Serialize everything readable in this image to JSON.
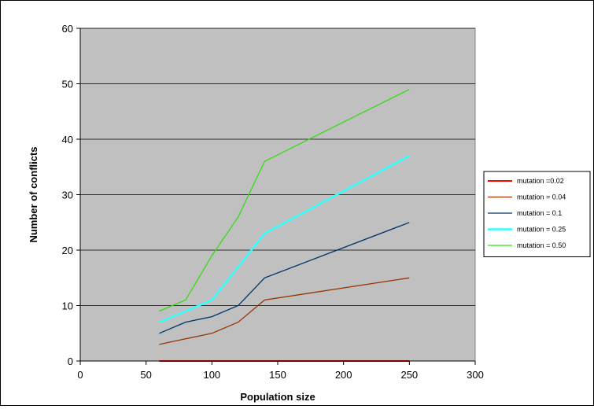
{
  "chart_data": {
    "type": "line",
    "title": "",
    "xlabel": "Population size",
    "ylabel": "Number of conflicts",
    "xlim": [
      0,
      300
    ],
    "ylim": [
      0,
      60
    ],
    "xticks": [
      0,
      50,
      100,
      150,
      200,
      250,
      300
    ],
    "yticks": [
      0,
      10,
      20,
      30,
      40,
      50,
      60
    ],
    "grid": "horizontal",
    "plot_background": "#C0C0C0",
    "legend_position": "right",
    "series": [
      {
        "name": "mutation =0.02",
        "color": "#FF0000",
        "width": 2,
        "points": [
          [
            60,
            0
          ],
          [
            80,
            0
          ],
          [
            100,
            0
          ],
          [
            120,
            0
          ],
          [
            140,
            0
          ],
          [
            250,
            0
          ]
        ]
      },
      {
        "name": "mutation = 0.04",
        "color": "#993300",
        "width": 1.3,
        "points": [
          [
            60,
            3
          ],
          [
            80,
            4
          ],
          [
            100,
            5
          ],
          [
            120,
            7
          ],
          [
            140,
            11
          ],
          [
            250,
            15
          ]
        ]
      },
      {
        "name": "mutation = 0.1",
        "color": "#003366",
        "width": 1.3,
        "points": [
          [
            60,
            5
          ],
          [
            80,
            7
          ],
          [
            100,
            8
          ],
          [
            120,
            10
          ],
          [
            140,
            15
          ],
          [
            250,
            25
          ]
        ]
      },
      {
        "name": "mutation = 0.25",
        "color": "#33FFFF",
        "width": 2.5,
        "points": [
          [
            60,
            7
          ],
          [
            80,
            9
          ],
          [
            100,
            11
          ],
          [
            120,
            17
          ],
          [
            140,
            23
          ],
          [
            250,
            37
          ]
        ]
      },
      {
        "name": "mutation = 0.50",
        "color": "#33DD11",
        "width": 1.3,
        "points": [
          [
            60,
            9
          ],
          [
            80,
            11
          ],
          [
            100,
            19
          ],
          [
            120,
            26
          ],
          [
            140,
            36
          ],
          [
            250,
            49
          ]
        ]
      }
    ]
  }
}
